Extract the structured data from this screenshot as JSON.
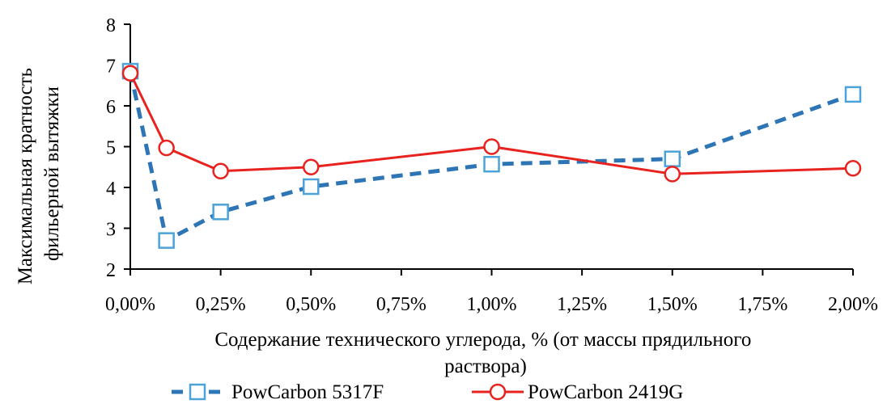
{
  "chart_data": {
    "type": "line",
    "x": [
      0,
      0.1,
      0.25,
      0.5,
      1.0,
      1.5,
      2.0
    ],
    "x_ticks": [
      0,
      0.25,
      0.5,
      0.75,
      1.0,
      1.25,
      1.5,
      1.75,
      2.0
    ],
    "x_tick_labels": [
      "0,00%",
      "0,25%",
      "0,50%",
      "0,75%",
      "1,00%",
      "1,25%",
      "1,50%",
      "1,75%",
      "2,00%"
    ],
    "xlim": [
      0,
      2.0
    ],
    "y_ticks": [
      2,
      3,
      4,
      5,
      6,
      7,
      8
    ],
    "y_tick_labels": [
      "2",
      "3",
      "4",
      "5",
      "6",
      "7",
      "8"
    ],
    "ylim": [
      2,
      8
    ],
    "xlabel_lines": [
      "Содержание технического углерода, % (от массы прядильного",
      "раствора)"
    ],
    "ylabel_lines": [
      "Максимальная кратность",
      "фильерной вытяжки"
    ],
    "grid": false,
    "legend_position": "bottom",
    "series": [
      {
        "name": "PowCarbon 5317F",
        "values": [
          6.85,
          2.7,
          3.4,
          4.02,
          4.57,
          4.7,
          6.28
        ],
        "color": "#2E75B6",
        "line_style": "dashed",
        "marker": "square"
      },
      {
        "name": "PowCarbon 2419G",
        "values": [
          6.8,
          4.97,
          4.4,
          4.5,
          5.0,
          4.33,
          4.47
        ],
        "color": "#E8221E",
        "line_style": "solid",
        "marker": "circle"
      }
    ]
  }
}
